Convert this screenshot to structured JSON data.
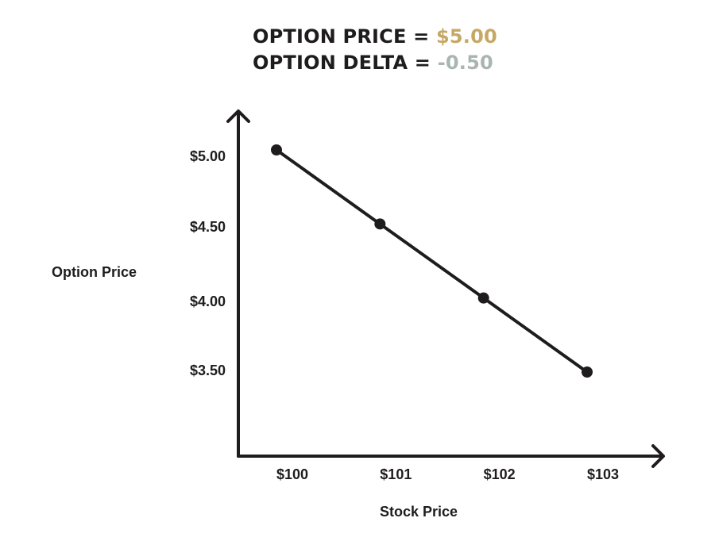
{
  "header": {
    "price_label": "OPTION PRICE = ",
    "price_value": "$5.00",
    "delta_label": "OPTION DELTA = ",
    "delta_value": "-0.50"
  },
  "colors": {
    "price_value": "#c6a865",
    "delta_value": "#a9b5b1",
    "ink": "#1f1c1d"
  },
  "chart_data": {
    "type": "line",
    "title": "OPTION PRICE = $5.00 / OPTION DELTA = -0.50",
    "xlabel": "Stock Price",
    "ylabel": "Option Price",
    "categories": [
      "$100",
      "$101",
      "$102",
      "$103"
    ],
    "x": [
      100,
      101,
      102,
      103
    ],
    "y_ticks": [
      {
        "value": 5.0,
        "label": "$5.00"
      },
      {
        "value": 4.5,
        "label": "$4.50"
      },
      {
        "value": 4.0,
        "label": "$4.00"
      },
      {
        "value": 3.5,
        "label": "$3.50"
      }
    ],
    "series": [
      {
        "values": [
          5.0,
          4.5,
          4.0,
          3.5
        ]
      }
    ],
    "grid": false,
    "markers": true
  }
}
